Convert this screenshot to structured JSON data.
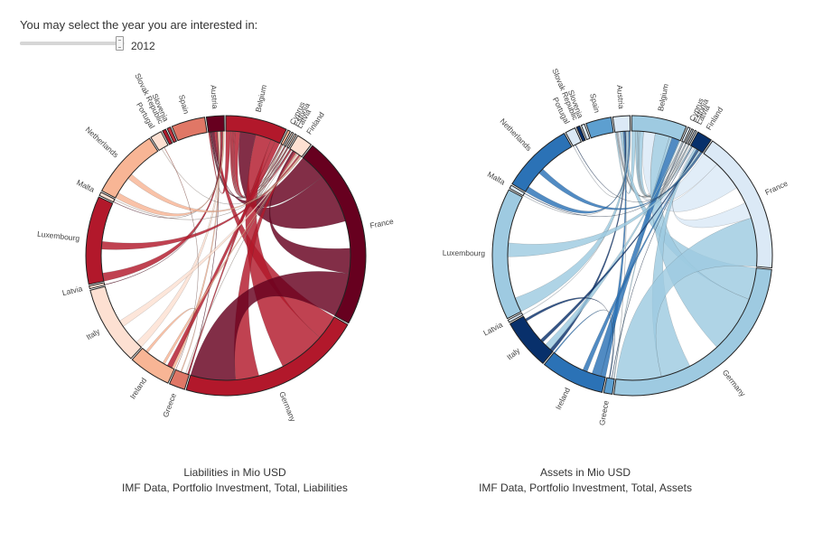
{
  "controls": {
    "prompt": "You may select the year you are interested in:",
    "year": "2012",
    "slider_position": 0.95
  },
  "colors": {
    "liabilities_scale": [
      "#fde0d2",
      "#f8b595",
      "#e07766",
      "#c1303b",
      "#b2182b",
      "#67001f"
    ],
    "assets_scale": [
      "#dbe9f6",
      "#9ecae1",
      "#5d9fd0",
      "#2b72b6",
      "#134b8c",
      "#08306b"
    ],
    "ring_stroke": "#222222"
  },
  "chart_data": [
    {
      "type": "chord",
      "title": "Liabilities in Mio USD",
      "subtitle": "IMF Data, Portfolio Investment, Total, Liabilities",
      "groups": [
        {
          "name": "Austria",
          "value": 2.0,
          "shade": 5
        },
        {
          "name": "Belgium",
          "value": 7.0,
          "shade": 4
        },
        {
          "name": "Cyprus",
          "value": 0.3,
          "shade": 1
        },
        {
          "name": "Estonia",
          "value": 0.2,
          "shade": 0
        },
        {
          "name": "Latvia",
          "value": 0.2,
          "shade": 0
        },
        {
          "name": "Finland",
          "value": 1.8,
          "shade": 0
        },
        {
          "name": "France",
          "value": 22.0,
          "shade": 5
        },
        {
          "name": "Germany",
          "value": 21.0,
          "shade": 4
        },
        {
          "name": "Greece",
          "value": 1.8,
          "shade": 2
        },
        {
          "name": "Ireland",
          "value": 4.8,
          "shade": 1
        },
        {
          "name": "Italy",
          "value": 9.0,
          "shade": 0
        },
        {
          "name": "Latvia",
          "value": 0.3,
          "shade": 0
        },
        {
          "name": "Luxembourg",
          "value": 10.0,
          "shade": 4
        },
        {
          "name": "Malta",
          "value": 0.4,
          "shade": 0
        },
        {
          "name": "Netherlands",
          "value": 8.0,
          "shade": 1
        },
        {
          "name": "Portugal",
          "value": 1.3,
          "shade": 0
        },
        {
          "name": "Slovak Republic",
          "value": 0.4,
          "shade": 4
        },
        {
          "name": "Slovenia",
          "value": 0.4,
          "shade": 3
        },
        {
          "name": "Spain",
          "value": 3.8,
          "shade": 2
        }
      ]
    },
    {
      "type": "chord",
      "title": "Assets in Mio USD",
      "subtitle": "IMF Data, Portfolio Investment, Total, Assets",
      "groups": [
        {
          "name": "Austria",
          "value": 2.0,
          "shade": 0
        },
        {
          "name": "Belgium",
          "value": 6.5,
          "shade": 1
        },
        {
          "name": "Cyprus",
          "value": 0.3,
          "shade": 0
        },
        {
          "name": "Estonia",
          "value": 0.2,
          "shade": 0
        },
        {
          "name": "Latvia",
          "value": 0.2,
          "shade": 0
        },
        {
          "name": "Finland",
          "value": 1.8,
          "shade": 5
        },
        {
          "name": "France",
          "value": 17.0,
          "shade": 0
        },
        {
          "name": "Germany",
          "value": 26.0,
          "shade": 1
        },
        {
          "name": "Greece",
          "value": 1.0,
          "shade": 2
        },
        {
          "name": "Ireland",
          "value": 7.5,
          "shade": 3
        },
        {
          "name": "Italy",
          "value": 6.0,
          "shade": 5
        },
        {
          "name": "Latvia",
          "value": 0.3,
          "shade": 0
        },
        {
          "name": "Luxembourg",
          "value": 15.5,
          "shade": 1
        },
        {
          "name": "Malta",
          "value": 0.4,
          "shade": 0
        },
        {
          "name": "Netherlands",
          "value": 8.5,
          "shade": 3
        },
        {
          "name": "Portugal",
          "value": 1.2,
          "shade": 0
        },
        {
          "name": "Slovak Republic",
          "value": 0.4,
          "shade": 5
        },
        {
          "name": "Slovenia",
          "value": 0.4,
          "shade": 0
        },
        {
          "name": "Spain",
          "value": 3.0,
          "shade": 2
        }
      ]
    }
  ]
}
